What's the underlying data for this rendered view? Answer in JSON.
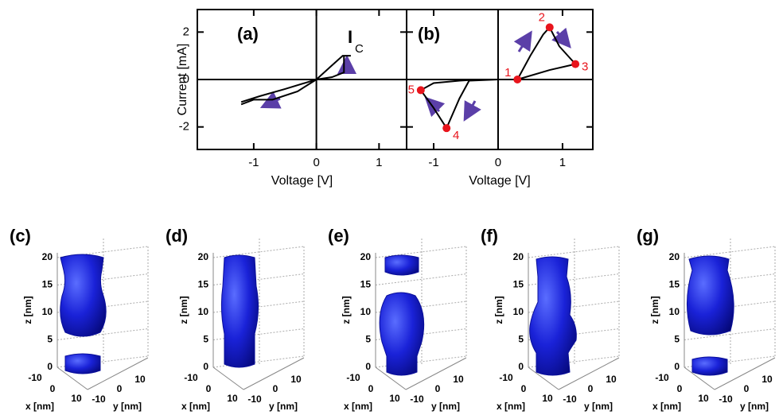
{
  "chart_data": [
    {
      "type": "line",
      "panel_label": "(a)",
      "ylabel": "Current [mA]",
      "xlabel": "Voltage [V]",
      "annotation": "I",
      "annotation_sub": "C",
      "xlim": [
        -1.9,
        1.44
      ],
      "ylim": [
        -2.95,
        2.95
      ],
      "xticks": [
        -1,
        0,
        1
      ],
      "yticks": [
        -2,
        0,
        2
      ],
      "series": [
        {
          "color": "#000000",
          "x": [
            -1.2,
            -0.9,
            -0.5,
            0,
            0.25,
            0.42,
            0.55,
            0.44,
            0.44,
            0.25,
            0,
            -0.3,
            -0.7,
            -1.0,
            -1.2
          ],
          "values": [
            -0.95,
            -0.7,
            -0.4,
            0,
            0.6,
            1.0,
            1.0,
            1.0,
            0.3,
            0.1,
            0,
            -0.5,
            -0.85,
            -0.85,
            -1.05
          ]
        }
      ]
    },
    {
      "type": "line",
      "panel_label": "(b)",
      "xlabel": "Voltage [V]",
      "xlim": [
        -1.42,
        1.47
      ],
      "ylim": [
        -2.95,
        2.95
      ],
      "xticks": [
        -1,
        0,
        1
      ],
      "series": [
        {
          "color": "#000000",
          "x": [
            0,
            -0.45,
            -0.6,
            -0.8,
            -1.0,
            -1.2,
            -1.0,
            -0.6,
            -0.3,
            0,
            0.3,
            0.5,
            0.7,
            0.8,
            0.95,
            1.2,
            0.8,
            0.3
          ],
          "values": [
            0,
            -0.05,
            -0.8,
            -2.05,
            -1.2,
            -0.45,
            -0.15,
            -0.05,
            0,
            0,
            0,
            1.0,
            1.9,
            2.2,
            1.4,
            0.65,
            0.4,
            0
          ]
        }
      ],
      "points": {
        "color": "#e8141c",
        "labels": [
          "1",
          "2",
          "3",
          "4",
          "5"
        ],
        "x": [
          0.3,
          0.8,
          1.2,
          -0.8,
          -1.2
        ],
        "values": [
          0,
          2.2,
          0.65,
          -2.05,
          -0.45
        ]
      }
    }
  ],
  "renderings": [
    {
      "label": "(c)",
      "zlabel": "z [nm]",
      "xlabel": "x [nm]",
      "ylabel": "y [nm]",
      "zticks": [
        "0",
        "5",
        "10",
        "15",
        "20"
      ],
      "xticks": [
        "-10",
        "0",
        "10"
      ],
      "yticks": [
        "10",
        "0",
        "-10"
      ]
    },
    {
      "label": "(d)",
      "zlabel": "z [nm]",
      "xlabel": "x [nm]",
      "ylabel": "y [nm]",
      "zticks": [
        "0",
        "5",
        "10",
        "15",
        "20"
      ],
      "xticks": [
        "-10",
        "0",
        "10"
      ],
      "yticks": [
        "10",
        "0",
        "-10"
      ]
    },
    {
      "label": "(e)",
      "zlabel": "z [nm]",
      "xlabel": "x [nm]",
      "ylabel": "y [nm]",
      "zticks": [
        "0",
        "5",
        "10",
        "15",
        "20"
      ],
      "xticks": [
        "-10",
        "0",
        "10"
      ],
      "yticks": [
        "10",
        "0",
        "-10"
      ]
    },
    {
      "label": "(f)",
      "zlabel": "z [nm]",
      "xlabel": "x [nm]",
      "ylabel": "y [nm]",
      "zticks": [
        "0",
        "5",
        "10",
        "15",
        "20"
      ],
      "xticks": [
        "-10",
        "0",
        "10"
      ],
      "yticks": [
        "10",
        "0",
        "-10"
      ]
    },
    {
      "label": "(g)",
      "zlabel": "z [nm]",
      "xlabel": "x [nm]",
      "ylabel": "y [nm]",
      "zticks": [
        "0",
        "5",
        "10",
        "15",
        "20"
      ],
      "xticks": [
        "-10",
        "0",
        "10"
      ],
      "yticks": [
        "10",
        "0",
        "-10"
      ]
    }
  ]
}
